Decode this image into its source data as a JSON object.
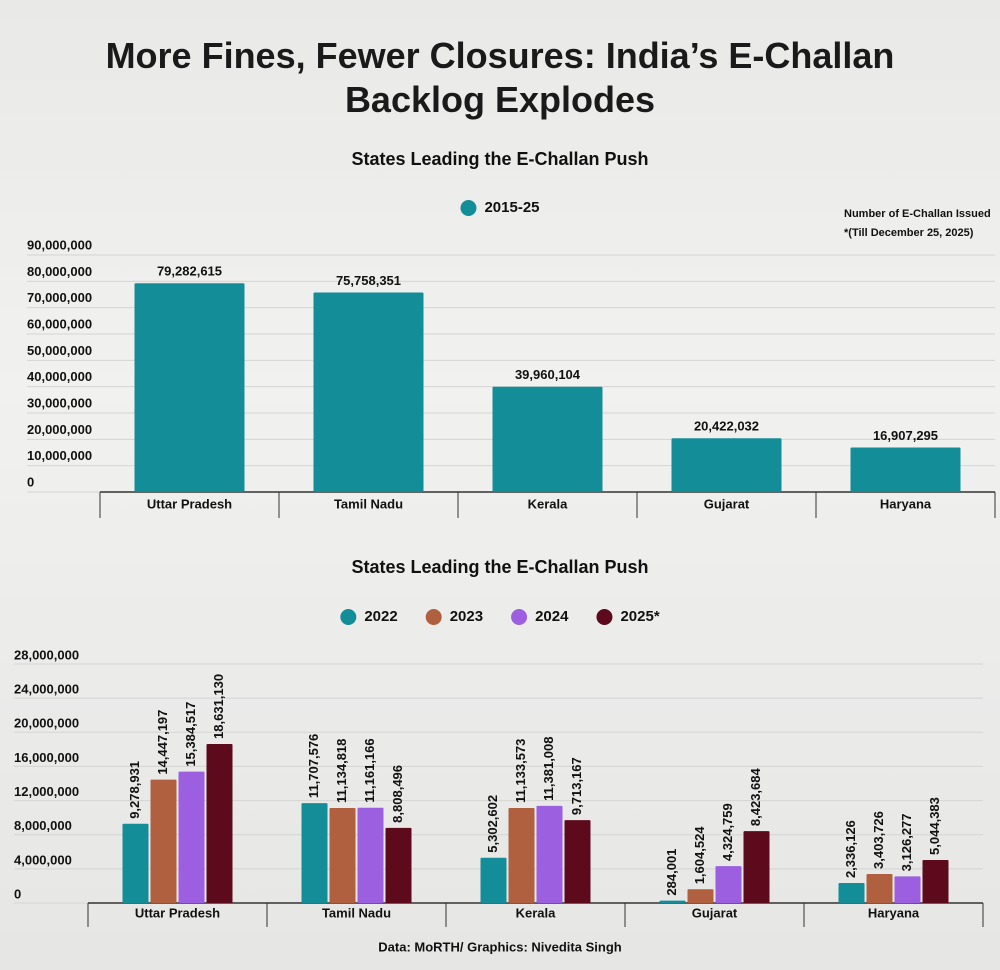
{
  "title": "More Fines, Fewer Closures: India’s E-Challan Backlog Explodes",
  "footer": "Data: MoRTH/ Graphics: Nivedita Singh",
  "chart_data": [
    {
      "type": "bar",
      "title": "States Leading the E-Challan Push",
      "annotations": [
        "Number of E-Challan Issued",
        "*(Till December 25, 2025)"
      ],
      "categories": [
        "Uttar Pradesh",
        "Tamil Nadu",
        "Kerala",
        "Gujarat",
        "Haryana"
      ],
      "series": [
        {
          "name": "2015-25",
          "color": "#138e99",
          "values": [
            79282615,
            75758351,
            39960104,
            20422032,
            16907295
          ],
          "value_labels": [
            "79,282,615",
            "75,758,351",
            "39,960,104",
            "20,422,032",
            "16,907,295"
          ]
        }
      ],
      "ylim": [
        0,
        90000000
      ],
      "yticks": [
        0,
        {
          "value": 10000000,
          "label": "10,000,000"
        },
        {
          "value": 20000000,
          "label": "20,000,000"
        },
        {
          "value": 30000000,
          "label": "30,000,000"
        },
        {
          "value": 40000000,
          "label": "40,000,000"
        },
        {
          "value": 50000000,
          "label": "50,000,000"
        },
        {
          "value": 60000000,
          "label": "60,000,000"
        },
        {
          "value": 70000000,
          "label": "70,000,000"
        },
        {
          "value": 80000000,
          "label": "80,000,000"
        },
        {
          "value": 90000000,
          "label": "90,000,000"
        }
      ],
      "grid": true
    },
    {
      "type": "bar",
      "title": "States Leading the E-Challan Push",
      "categories": [
        "Uttar Pradesh",
        "Tamil Nadu",
        "Kerala",
        "Gujarat",
        "Haryana"
      ],
      "series": [
        {
          "name": "2022",
          "color": "#138e99",
          "values": [
            9278931,
            11707576,
            5302602,
            284001,
            2336126
          ],
          "value_labels": [
            "9,278,931",
            "11,707,576",
            "5,302,602",
            "284,001",
            "2,336,126"
          ]
        },
        {
          "name": "2023",
          "color": "#b0603f",
          "values": [
            14447197,
            11134818,
            11133573,
            1604524,
            3403726
          ],
          "value_labels": [
            "14,447,197",
            "11,134,818",
            "11,133,573",
            "1,604,524",
            "3,403,726"
          ]
        },
        {
          "name": "2024",
          "color": "#9b5fe0",
          "values": [
            15384517,
            11161166,
            11381008,
            4324759,
            3126277
          ],
          "value_labels": [
            "15,384,517",
            "11,161,166",
            "11,381,008",
            "4,324,759",
            "3,126,277"
          ]
        },
        {
          "name": "2025*",
          "color": "#5c0a1c",
          "values": [
            18631130,
            8808496,
            9713167,
            8423684,
            5044383
          ],
          "value_labels": [
            "18,631,130",
            "8,808,496",
            "9,713,167",
            "8,423,684",
            "5,044,383"
          ]
        }
      ],
      "ylim": [
        0,
        28000000
      ],
      "yticks": [
        0,
        {
          "value": 4000000,
          "label": "4,000,000"
        },
        {
          "value": 8000000,
          "label": "8,000,000"
        },
        {
          "value": 12000000,
          "label": "12,000,000"
        },
        {
          "value": 16000000,
          "label": "16,000,000"
        },
        {
          "value": 20000000,
          "label": "20,000,000"
        },
        {
          "value": 24000000,
          "label": "24,000,000"
        },
        {
          "value": 28000000,
          "label": "28,000,000"
        }
      ],
      "grid": true
    }
  ]
}
